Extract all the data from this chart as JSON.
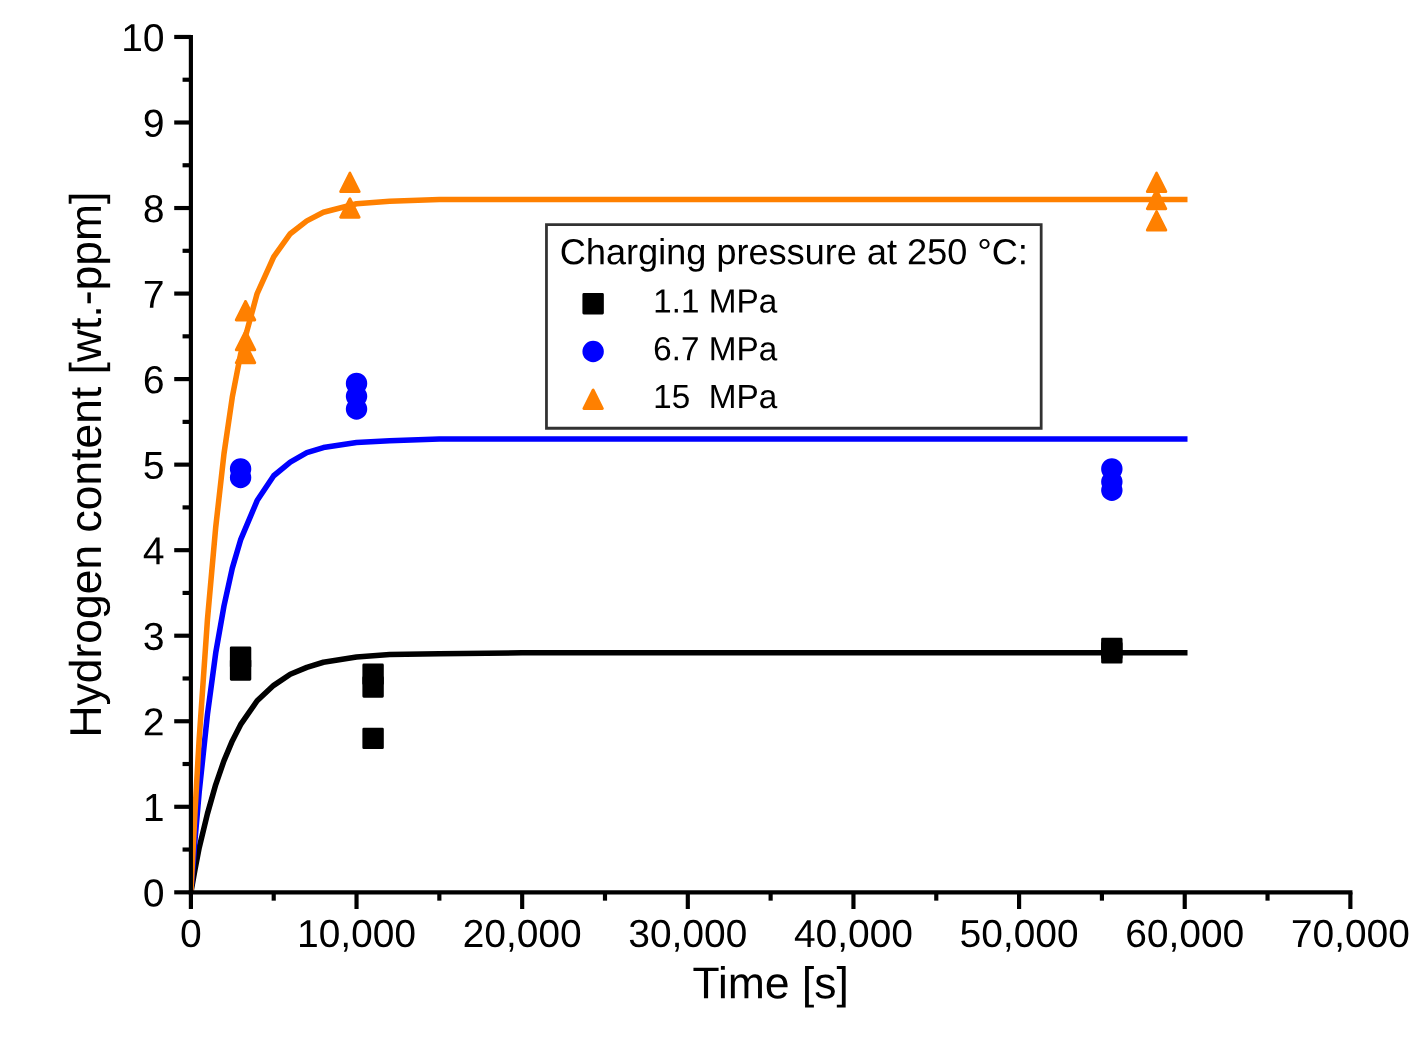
{
  "chart_data": {
    "type": "scatter",
    "xlabel": "Time [s]",
    "ylabel": "Hydrogen content [wt.-ppm]",
    "legend_title": "Charging pressure at 250 °C:",
    "legend": "top",
    "grid": false,
    "xlim": [
      0,
      70000
    ],
    "ylim": [
      0,
      10
    ],
    "xticks": [
      {
        "value": 0,
        "label": "0"
      },
      {
        "value": 10000,
        "label": "10,000"
      },
      {
        "value": 20000,
        "label": "20,000"
      },
      {
        "value": 30000,
        "label": "30,000"
      },
      {
        "value": 40000,
        "label": "40,000"
      },
      {
        "value": 50000,
        "label": "50,000"
      },
      {
        "value": 60000,
        "label": "60,000"
      },
      {
        "value": 70000,
        "label": "70,000"
      }
    ],
    "yticks": [
      0,
      1,
      2,
      3,
      4,
      5,
      6,
      7,
      8,
      9,
      10
    ],
    "series": [
      {
        "name": "1.1 MPa",
        "color": "#000000",
        "marker": "square",
        "x": [
          3000,
          3000,
          11000,
          11000,
          11000,
          55600,
          55600
        ],
        "values": [
          2.6,
          2.75,
          2.4,
          2.55,
          1.8,
          2.8,
          2.85
        ]
      },
      {
        "name": "6.7 MPa",
        "color": "#0000ff",
        "marker": "circle",
        "x": [
          3000,
          3000,
          10000,
          10000,
          10000,
          55600,
          55600,
          55600
        ],
        "values": [
          4.85,
          4.95,
          5.65,
          5.8,
          5.95,
          4.7,
          4.8,
          4.95
        ]
      },
      {
        "name": "15  MPa",
        "color": "#ff8000",
        "marker": "triangle",
        "x": [
          3300,
          3300,
          3300,
          9600,
          9600,
          58300,
          58300,
          58300
        ],
        "values": [
          6.3,
          6.45,
          6.8,
          8.0,
          8.3,
          7.85,
          8.1,
          8.3
        ]
      },
      {
        "type": "line",
        "color": "#000000",
        "x": [
          0,
          250,
          500,
          1000,
          1500,
          2000,
          2500,
          3000,
          4000,
          5000,
          6000,
          7000,
          8000,
          10000,
          12000,
          15000,
          20000,
          60000
        ],
        "values": [
          0,
          0.27,
          0.52,
          0.92,
          1.26,
          1.54,
          1.77,
          1.96,
          2.24,
          2.42,
          2.55,
          2.63,
          2.69,
          2.75,
          2.78,
          2.79,
          2.8,
          2.8
        ]
      },
      {
        "type": "line",
        "color": "#0000ff",
        "x": [
          0,
          250,
          500,
          1000,
          1500,
          2000,
          2500,
          3000,
          4000,
          5000,
          6000,
          7000,
          8000,
          10000,
          12000,
          15000,
          20000,
          60000
        ],
        "values": [
          0,
          0.62,
          1.17,
          2.08,
          2.8,
          3.35,
          3.79,
          4.12,
          4.58,
          4.87,
          5.03,
          5.14,
          5.2,
          5.26,
          5.28,
          5.3,
          5.3,
          5.3
        ]
      },
      {
        "type": "line",
        "color": "#ff8000",
        "x": [
          0,
          250,
          500,
          1000,
          1500,
          2000,
          2500,
          3000,
          4000,
          5000,
          6000,
          7000,
          8000,
          10000,
          12000,
          15000,
          20000,
          60000
        ],
        "values": [
          0,
          0.95,
          1.79,
          3.19,
          4.27,
          5.13,
          5.79,
          6.29,
          7.0,
          7.43,
          7.7,
          7.85,
          7.95,
          8.05,
          8.08,
          8.1,
          8.1,
          8.1
        ]
      }
    ]
  }
}
